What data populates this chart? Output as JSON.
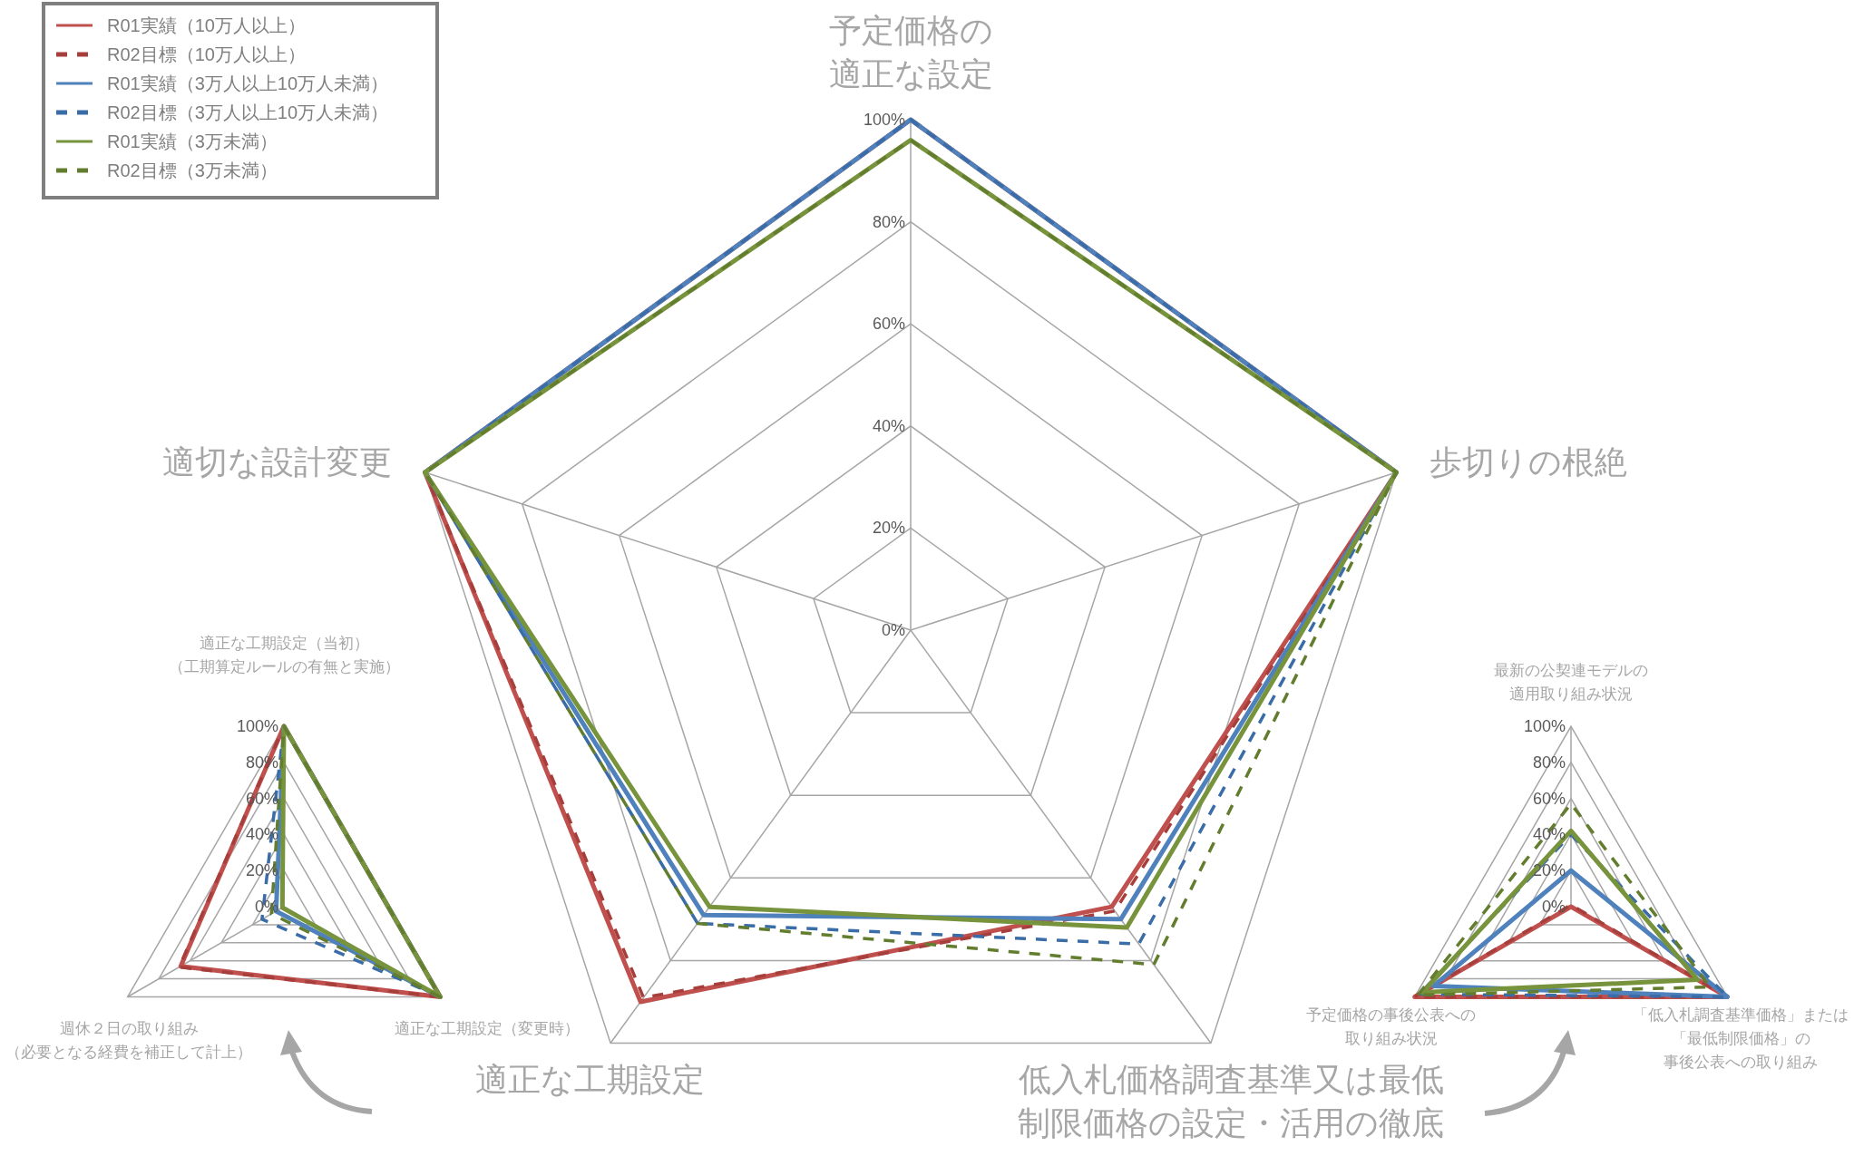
{
  "chart_data": [
    {
      "type": "radar",
      "categories": [
        "予定価格の適正な設定",
        "歩切りの根絶",
        "低入札価格調査基準又は最低制限価格の設定・活用の徹底",
        "適正な工期設定",
        "適切な設計変更"
      ],
      "series": [
        {
          "name": "R01実績（10万人以上）",
          "color": "#c0504d",
          "line_style": "solid",
          "values": [
            100,
            100,
            67,
            90,
            100
          ]
        },
        {
          "name": "R02目標（10万人以上）",
          "color": "#a63e3b",
          "line_style": "dashed",
          "values": [
            100,
            100,
            68,
            89,
            100
          ]
        },
        {
          "name": "R01実績（3万人以上10万人未満）",
          "color": "#4f81bd",
          "line_style": "solid",
          "values": [
            100,
            100,
            70,
            69,
            100
          ]
        },
        {
          "name": "R02目標（3万人以上10万人未満）",
          "color": "#3a6ca8",
          "line_style": "dashed",
          "values": [
            100,
            100,
            76,
            71,
            100
          ]
        },
        {
          "name": "R01実績（3万未満）",
          "color": "#77933c",
          "line_style": "solid",
          "values": [
            96,
            100,
            72,
            67,
            100
          ]
        },
        {
          "name": "R02目標（3万未満）",
          "color": "#637d2e",
          "line_style": "dashed",
          "values": [
            96,
            100,
            81,
            71,
            100
          ]
        }
      ],
      "ylim": [
        0,
        100
      ],
      "yticks": [
        {
          "value": 0,
          "label": "0%"
        },
        {
          "value": 20,
          "label": "20%"
        },
        {
          "value": 40,
          "label": "40%"
        },
        {
          "value": 60,
          "label": "60%"
        },
        {
          "value": 80,
          "label": "80%"
        },
        {
          "value": 100,
          "label": "100%"
        }
      ],
      "grid": true,
      "legend": "top left"
    },
    {
      "type": "radar",
      "categories": [
        "適正な工期設定（当初）（工期算定ルールの有無と実施）",
        "適正な工期設定（変更時）",
        "週休２日の取り組み（必要となる経費を補正して計上）"
      ],
      "series": [
        {
          "color": "#c0504d",
          "line_style": "solid",
          "values": [
            100,
            100,
            66
          ]
        },
        {
          "color": "#a63e3b",
          "line_style": "dashed",
          "values": [
            100,
            100,
            67
          ]
        },
        {
          "color": "#4f81bd",
          "line_style": "solid",
          "values": [
            100,
            100,
            5
          ]
        },
        {
          "color": "#3a6ca8",
          "line_style": "dashed",
          "values": [
            100,
            100,
            14
          ]
        },
        {
          "color": "#77933c",
          "line_style": "solid",
          "values": [
            100,
            100,
            1
          ]
        },
        {
          "color": "#637d2e",
          "line_style": "dashed",
          "values": [
            100,
            100,
            8
          ]
        }
      ],
      "ylim": [
        0,
        100
      ],
      "yticks": [
        {
          "value": 0,
          "label": "0%"
        },
        {
          "value": 20,
          "label": "20%"
        },
        {
          "value": 40,
          "label": "40%"
        },
        {
          "value": 60,
          "label": "60%"
        },
        {
          "value": 80,
          "label": "80%"
        },
        {
          "value": 100,
          "label": "100%"
        }
      ],
      "grid": true
    },
    {
      "type": "radar",
      "categories": [
        "最新の公契連モデルの適用取り組み状況",
        "「低入札調査基準価格」または「最低制限価格」の事後公表への取り組み",
        "予定価格の事後公表への取り組み状況"
      ],
      "series": [
        {
          "color": "#c0504d",
          "line_style": "solid",
          "values": [
            0,
            100,
            100
          ]
        },
        {
          "color": "#a63e3b",
          "line_style": "dashed",
          "values": [
            1,
            100,
            100
          ]
        },
        {
          "color": "#4f81bd",
          "line_style": "solid",
          "values": [
            20,
            100,
            88
          ]
        },
        {
          "color": "#3a6ca8",
          "line_style": "dashed",
          "values": [
            40,
            100,
            97
          ]
        },
        {
          "color": "#77933c",
          "line_style": "solid",
          "values": [
            42,
            81,
            95
          ]
        },
        {
          "color": "#637d2e",
          "line_style": "dashed",
          "values": [
            57,
            89,
            98
          ]
        }
      ],
      "ylim": [
        0,
        100
      ],
      "yticks": [
        {
          "value": 0,
          "label": "0%"
        },
        {
          "value": 20,
          "label": "20%"
        },
        {
          "value": 40,
          "label": "40%"
        },
        {
          "value": 60,
          "label": "60%"
        },
        {
          "value": 80,
          "label": "80%"
        },
        {
          "value": 100,
          "label": "100%"
        }
      ],
      "grid": true
    }
  ]
}
